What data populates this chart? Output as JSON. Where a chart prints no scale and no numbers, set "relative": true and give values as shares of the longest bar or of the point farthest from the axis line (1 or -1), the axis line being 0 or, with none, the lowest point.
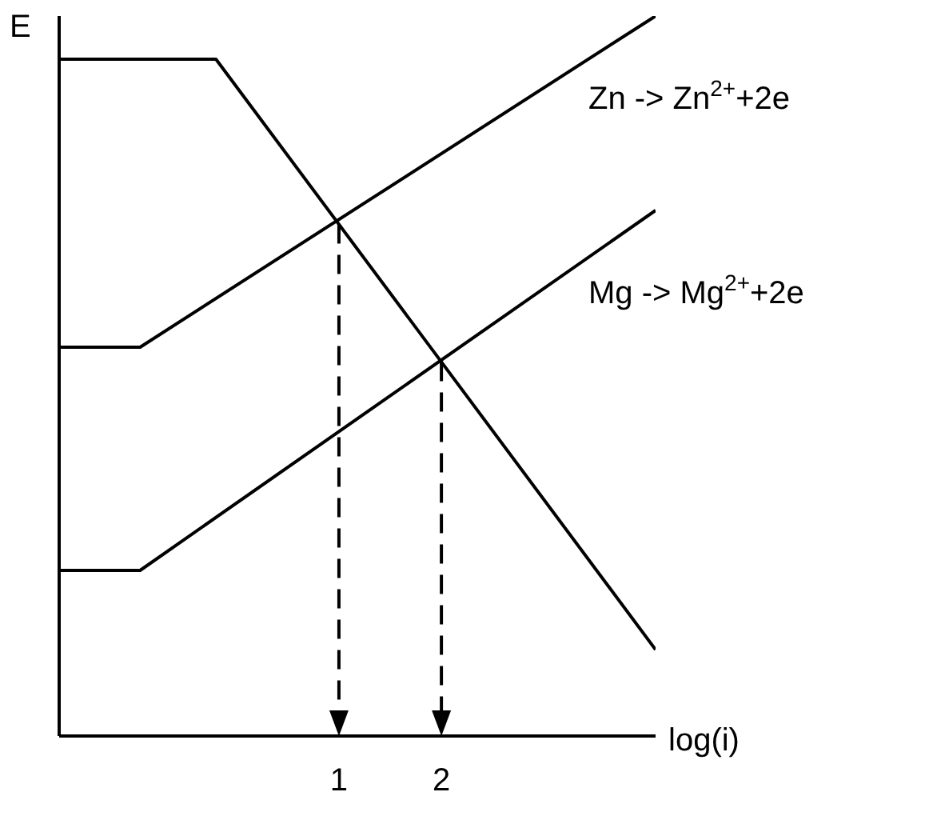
{
  "chart_data": {
    "type": "line",
    "relative": true,
    "xlabel": "log(i)",
    "ylabel": "E",
    "xlim": [
      -1.73,
      4.09
    ],
    "xticks": [
      1,
      2
    ],
    "marker": "none",
    "line_style": "solid",
    "series": [
      {
        "color": "#000000",
        "x": [
          -1.73,
          -0.2,
          4.09
        ],
        "values": [
          0.94,
          0.94,
          0.12
        ]
      },
      {
        "name": "Zn -> Zn$^{2+}$+2e",
        "color": "#000000",
        "x": [
          -1.73,
          -0.94,
          4.09
        ],
        "values": [
          0.54,
          0.54,
          1
        ]
      },
      {
        "name": "Mg -> Mg$^{2+}$+2e",
        "color": "#000000",
        "x": [
          -1.73,
          -0.94,
          4.09
        ],
        "values": [
          0.23,
          0.23,
          0.73
        ]
      }
    ]
  }
}
